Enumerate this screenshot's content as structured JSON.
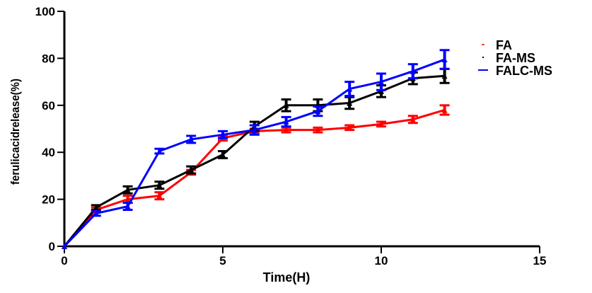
{
  "chart_data": {
    "type": "line",
    "title": "",
    "xlabel": "Time(H)",
    "ylabel": "ferulicacidrelease(%)",
    "xlim": [
      0,
      15
    ],
    "ylim": [
      0,
      100
    ],
    "xticks": [
      0,
      5,
      10,
      15
    ],
    "yticks": [
      0,
      20,
      40,
      60,
      80,
      100
    ],
    "grid": false,
    "legend_position": "top-right",
    "x": [
      0,
      1,
      2,
      3,
      4,
      5,
      6,
      7,
      8,
      9,
      10,
      11,
      12
    ],
    "series": [
      {
        "name": "FA",
        "color": "#ff0000",
        "values": [
          0,
          15.5,
          20,
          21.5,
          31.5,
          46,
          49,
          49.5,
          49.5,
          50.5,
          52,
          54,
          58
        ],
        "errors": [
          0,
          1,
          1.5,
          1.5,
          1,
          1,
          1,
          1,
          1,
          1,
          1,
          1.5,
          2
        ]
      },
      {
        "name": "FA-MS",
        "color": "#000000",
        "values": [
          0,
          16.5,
          24,
          26,
          32.5,
          39,
          51,
          60,
          60,
          61,
          66,
          71.5,
          72.5
        ],
        "errors": [
          0,
          1,
          1.5,
          1.5,
          1.5,
          1.5,
          2,
          2.5,
          2.5,
          2.5,
          2.5,
          2.5,
          3
        ]
      },
      {
        "name": "FALC-MS",
        "color": "#0000ff",
        "values": [
          0,
          14,
          17,
          40.5,
          45.5,
          47.5,
          49.5,
          53,
          57.5,
          67,
          70,
          74.5,
          79.5
        ],
        "errors": [
          0,
          1,
          1.5,
          1,
          1.5,
          1.5,
          2,
          2,
          2,
          3,
          3.5,
          3,
          4
        ]
      }
    ]
  }
}
